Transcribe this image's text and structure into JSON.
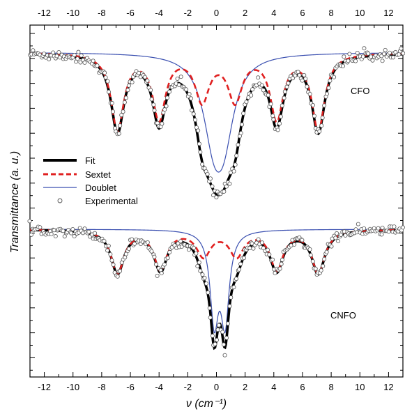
{
  "chart_data": {
    "type": "line",
    "xlabel": "ν (cm⁻¹)",
    "ylabel": "Transmittance (a. u.)",
    "xlim": [
      -13,
      13
    ],
    "x_ticks": [
      -12,
      -10,
      -8,
      -6,
      -4,
      -2,
      0,
      2,
      4,
      6,
      8,
      10,
      12
    ],
    "y_tick_labels_shown": false,
    "grid": false,
    "legend": {
      "placement": "left, between panels",
      "entries": [
        {
          "name": "Fit",
          "style": "solid-thick",
          "color": "#000000"
        },
        {
          "name": "Sextet",
          "style": "dashed",
          "color": "#e02020"
        },
        {
          "name": "Doublet",
          "style": "solid-thin",
          "color": "#3a4fb0"
        },
        {
          "name": "Experimental",
          "style": "open-circle",
          "color": "#555555"
        }
      ]
    },
    "panels": [
      {
        "label": "CFO",
        "baseline": 1.0,
        "sextet_peaks": [
          {
            "center": -6.9,
            "depth": 0.33,
            "width": 0.55
          },
          {
            "center": -4.0,
            "depth": 0.28,
            "width": 0.55
          },
          {
            "center": -1.0,
            "depth": 0.2,
            "width": 0.6
          },
          {
            "center": 1.3,
            "depth": 0.2,
            "width": 0.6
          },
          {
            "center": 4.2,
            "depth": 0.28,
            "width": 0.55
          },
          {
            "center": 7.1,
            "depth": 0.33,
            "width": 0.55
          }
        ],
        "doublet_peaks": [
          {
            "center": -0.2,
            "depth": 0.3,
            "width": 0.9
          },
          {
            "center": 0.5,
            "depth": 0.3,
            "width": 0.9
          }
        ],
        "sextet_min_values": [
          0.73,
          0.71,
          0.76,
          0.76,
          0.71,
          0.73
        ],
        "doublet_min_value": 0.65,
        "fit_min_value": 0.43,
        "experimental_noise": 0.012
      },
      {
        "label": "CNFO",
        "baseline": 1.0,
        "sextet_peaks": [
          {
            "center": -6.9,
            "depth": 0.22,
            "width": 0.55
          },
          {
            "center": -3.9,
            "depth": 0.2,
            "width": 0.55
          },
          {
            "center": -0.9,
            "depth": 0.13,
            "width": 0.6
          },
          {
            "center": 1.4,
            "depth": 0.13,
            "width": 0.6
          },
          {
            "center": 4.2,
            "depth": 0.2,
            "width": 0.55
          },
          {
            "center": 7.1,
            "depth": 0.22,
            "width": 0.55
          }
        ],
        "doublet_peaks": [
          {
            "center": -0.15,
            "depth": 0.45,
            "width": 0.35
          },
          {
            "center": 0.6,
            "depth": 0.45,
            "width": 0.35
          }
        ],
        "sextet_min_values": [
          0.79,
          0.81,
          0.85,
          0.85,
          0.81,
          0.79
        ],
        "doublet_min_value": 0.6,
        "fit_min_value": 0.32,
        "experimental_noise": 0.012
      }
    ]
  }
}
